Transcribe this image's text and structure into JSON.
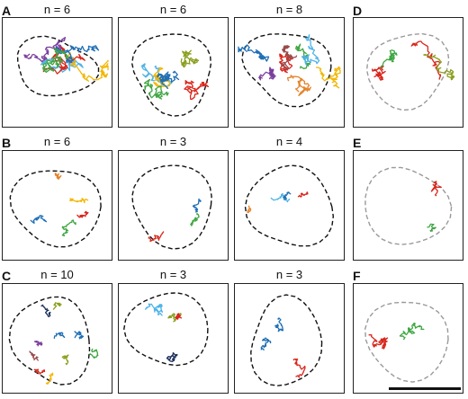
{
  "figure": {
    "rows": [
      {
        "label": "A",
        "titles": [
          "n = 6",
          "n = 6",
          "n = 8"
        ]
      },
      {
        "label": "B",
        "titles": [
          "n = 6",
          "n = 3",
          "n = 4"
        ]
      },
      {
        "label": "C",
        "titles": [
          "n = 10",
          "n = 3",
          "n = 3"
        ]
      }
    ],
    "side_labels": [
      "D",
      "E",
      "F"
    ]
  },
  "colors": {
    "trace_palette": [
      "#1f6fb5",
      "#d9271c",
      "#3fa642",
      "#f2b705",
      "#7b3f9e",
      "#e5832a",
      "#4fb3e8",
      "#9a4a4a",
      "#1b2f5c",
      "#8aa020"
    ],
    "boundary_dark": "#111111",
    "boundary_gray": "#9a9a9a"
  }
}
